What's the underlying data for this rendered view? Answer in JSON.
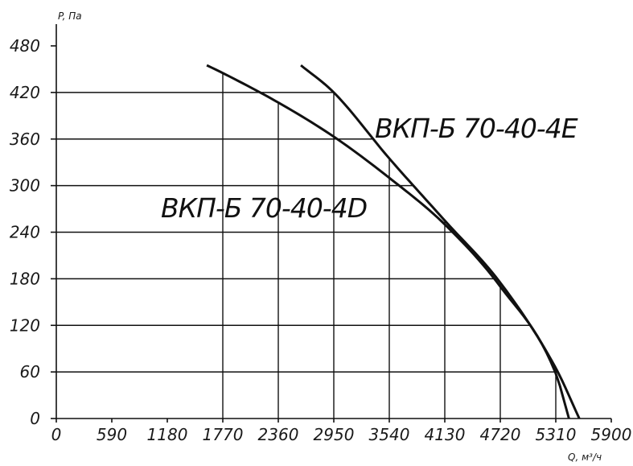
{
  "chart_data": {
    "type": "line",
    "xlabel": "Q, м³/ч",
    "ylabel": "P, Па",
    "xlim": [
      0,
      5900
    ],
    "ylim": [
      0,
      480
    ],
    "x_ticks": [
      "0",
      "590",
      "1180",
      "1770",
      "2360",
      "2950",
      "3540",
      "4130",
      "4720",
      "5310",
      "5900"
    ],
    "y_ticks": [
      "0",
      "60",
      "120",
      "180",
      "240",
      "300",
      "360",
      "420",
      "480"
    ],
    "grid": "partial (drop lines from curve to axes)",
    "series": [
      {
        "name": "ВКП-Б 70-40-4D",
        "x": [
          1600,
          1770,
          2360,
          2950,
          3540,
          4130,
          4720,
          5310,
          5450
        ],
        "y": [
          455,
          445,
          407,
          363,
          310,
          250,
          170,
          58,
          0
        ]
      },
      {
        "name": "ВКП-Б 70-40-4E",
        "x": [
          2600,
          2950,
          3540,
          4130,
          4720,
          5310,
          5560
        ],
        "y": [
          455,
          420,
          335,
          255,
          175,
          65,
          0
        ]
      }
    ],
    "colors": {
      "lines": "#111111",
      "background": "#ffffff"
    }
  }
}
